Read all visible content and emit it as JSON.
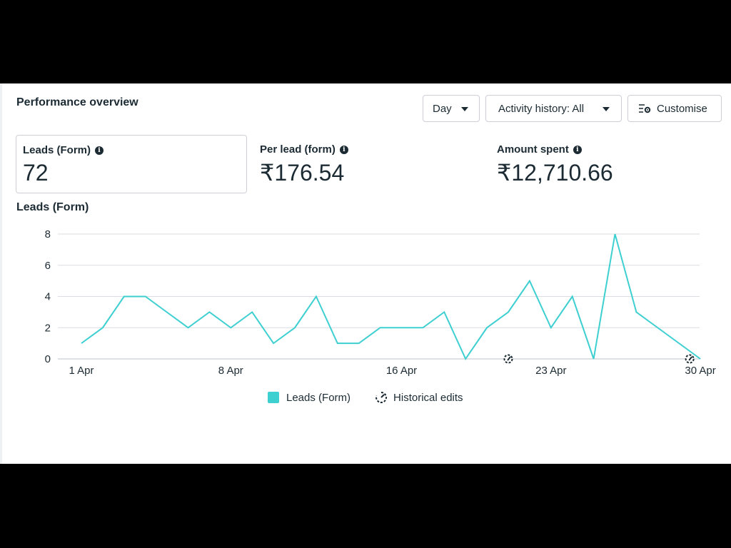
{
  "panel": {
    "title": "Performance overview",
    "controls": {
      "day_label": "Day",
      "activity_label": "Activity history: All",
      "customise_label": "Customise"
    },
    "metrics": [
      {
        "label": "Leads (Form)",
        "value": "72",
        "selected": true
      },
      {
        "label": "Per lead (form)",
        "value": "₹176.54"
      },
      {
        "label": "Amount spent",
        "value": "₹12,710.66"
      }
    ],
    "chart_title": "Leads (Form)",
    "legend": {
      "series": "Leads (Form)",
      "historical": "Historical edits"
    }
  },
  "colors": {
    "line": "#3ecfd1",
    "grid": "#dadde1",
    "text": "#1c2b33"
  },
  "chart_data": {
    "type": "line",
    "x": [
      1,
      2,
      3,
      4,
      5,
      6,
      7,
      8,
      9,
      10,
      11,
      12,
      13,
      14,
      15,
      16,
      17,
      18,
      19,
      20,
      21,
      22,
      23,
      24,
      25,
      26,
      27,
      28,
      29,
      30
    ],
    "series": [
      {
        "name": "Leads (Form)",
        "values": [
          1,
          2,
          4,
          4,
          3,
          2,
          3,
          2,
          3,
          1,
          2,
          4,
          1,
          1,
          2,
          2,
          2,
          3,
          0,
          2,
          3,
          5,
          2,
          4,
          0,
          8,
          3,
          2,
          1,
          0
        ]
      }
    ],
    "x_ticks": [
      {
        "day": 1,
        "label": "1 Apr"
      },
      {
        "day": 8,
        "label": "8 Apr"
      },
      {
        "day": 16,
        "label": "16 Apr"
      },
      {
        "day": 23,
        "label": "23 Apr"
      },
      {
        "day": 30,
        "label": "30 Apr"
      }
    ],
    "y_ticks": [
      0,
      2,
      4,
      6,
      8
    ],
    "ylim": [
      0,
      8
    ],
    "historical_edit_days": [
      21,
      29.5
    ],
    "grid": true,
    "legend_position": "bottom"
  }
}
